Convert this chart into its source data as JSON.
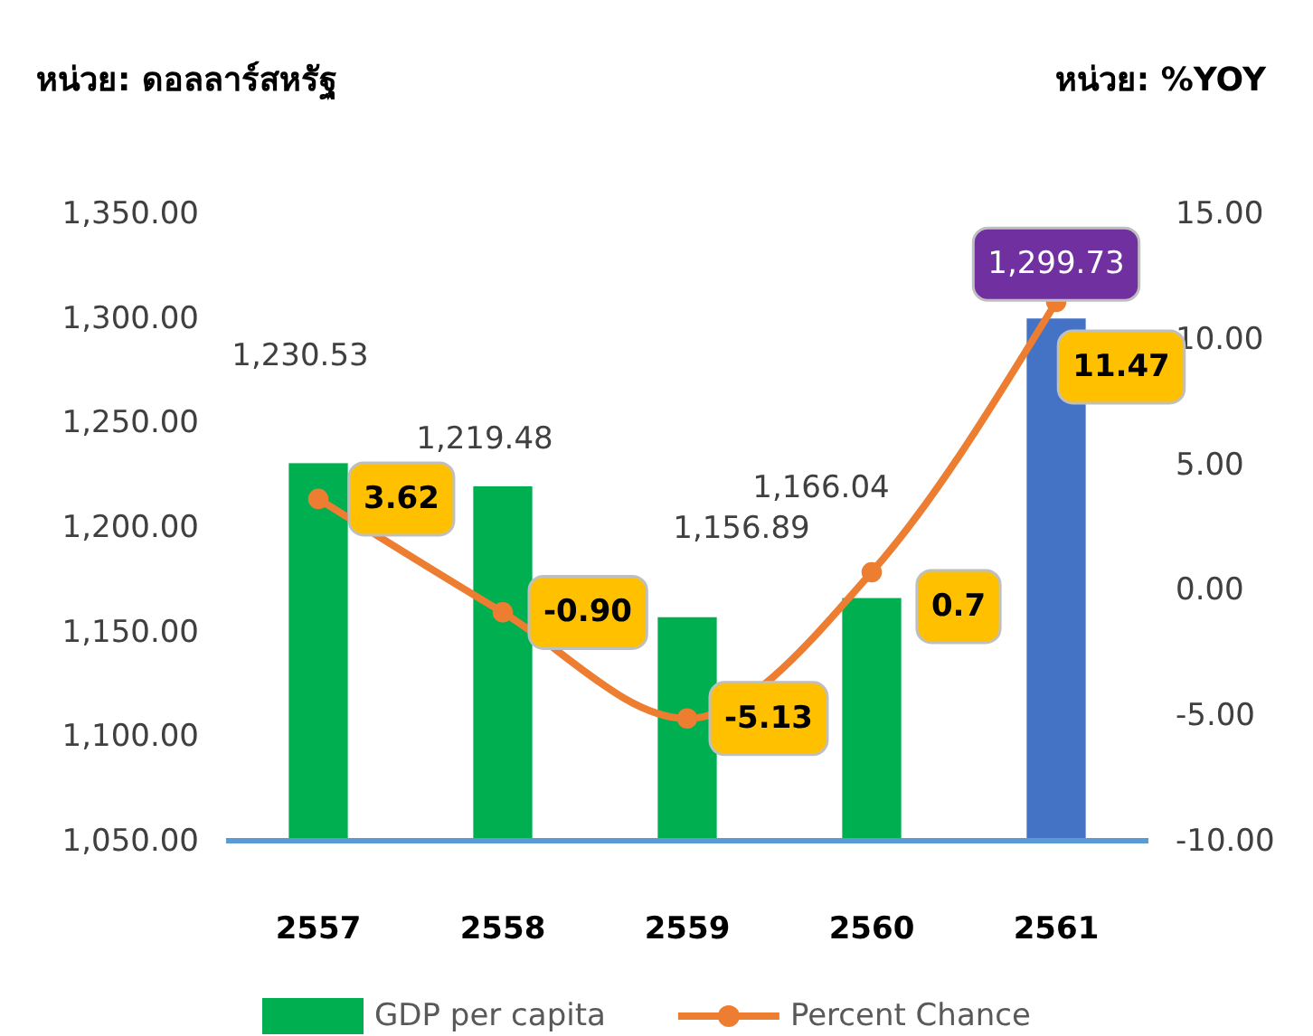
{
  "chart_data": {
    "type": "bar",
    "ylabel": "หน่วย: ดอลลาร์สหรัฐ",
    "y2label": "หน่วย: %YOY",
    "categories": [
      "2557",
      "2558",
      "2559",
      "2560",
      "2561"
    ],
    "series": [
      {
        "name": "GDP per capita",
        "color": "#00b050",
        "colors": [
          "#00b050",
          "#00b050",
          "#00b050",
          "#00b050",
          "#4472c4"
        ],
        "values": [
          1230.53,
          1219.48,
          1156.89,
          1166.04,
          1299.73
        ],
        "value_labels": [
          "1,230.53",
          "1,219.48",
          "1,156.89",
          "1,166.04",
          "1,299.73"
        ]
      },
      {
        "name": "Percent Chance",
        "type": "line",
        "axis": "y2",
        "color": "#ed7d31",
        "values": [
          3.62,
          -0.9,
          -5.13,
          0.7,
          11.47
        ],
        "value_labels": [
          "3.62",
          "-0.90",
          "-5.13",
          "0.7",
          "11.47"
        ]
      }
    ],
    "ylim": [
      1050,
      1350
    ],
    "yticks": [
      {
        "value": 1050,
        "label": "1,050.00"
      },
      {
        "value": 1100,
        "label": "1,100.00"
      },
      {
        "value": 1150,
        "label": "1,150.00"
      },
      {
        "value": 1200,
        "label": "1,200.00"
      },
      {
        "value": 1250,
        "label": "1,250.00"
      },
      {
        "value": 1300,
        "label": "1,300.00"
      },
      {
        "value": 1350,
        "label": "1,350.00"
      }
    ],
    "y2lim": [
      -10,
      15
    ],
    "y2ticks": [
      {
        "value": -10,
        "label": "-10.00"
      },
      {
        "value": -5,
        "label": "-5.00"
      },
      {
        "value": 0,
        "label": "0.00"
      },
      {
        "value": 5,
        "label": "5.00"
      },
      {
        "value": 10,
        "label": "10.00"
      },
      {
        "value": 15,
        "label": "15.00"
      }
    ],
    "marker": "circle",
    "line_style": "solid",
    "grid": false,
    "legend": "bottom"
  }
}
